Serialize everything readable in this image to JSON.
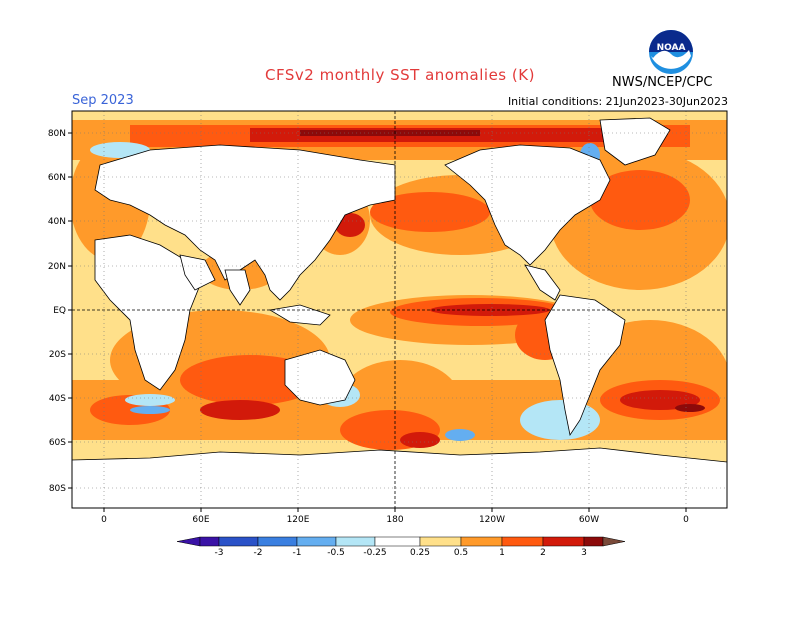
{
  "header": {
    "title": "CFSv2 monthly SST anomalies (K)",
    "month": "Sep 2023",
    "initial_conditions": "Initial conditions: 21Jun2023-30Jun2023",
    "org": "NWS/NCEP/CPC",
    "logo_text": "NOAA"
  },
  "axes": {
    "lat_labels": [
      "80N",
      "60N",
      "40N",
      "20N",
      "EQ",
      "20S",
      "40S",
      "60S",
      "80S"
    ],
    "lon_labels": [
      "0",
      "60E",
      "120E",
      "180",
      "120W",
      "60W",
      "0"
    ]
  },
  "legend": {
    "labels": [
      "-3",
      "-2",
      "-1",
      "-0.5",
      "-0.25",
      "0.25",
      "0.5",
      "1",
      "2",
      "3"
    ],
    "colors": [
      "#3a12a6",
      "#2a52c8",
      "#3a7fe0",
      "#64aef0",
      "#b4e6f6",
      "#ffffff",
      "#ffe08a",
      "#ff9a2a",
      "#ff5a10",
      "#d21a0a",
      "#8c0a0a",
      "#7a4a3a"
    ]
  },
  "colors": {
    "land": "#ffffff",
    "ocean_warm_light": "#ffe08a",
    "ocean_warm": "#ff9a2a",
    "ocean_hot": "#ff5a10",
    "ocean_very_hot": "#d21a0a",
    "ocean_cool": "#b4e6f6",
    "ocean_cold": "#64aef0"
  }
}
